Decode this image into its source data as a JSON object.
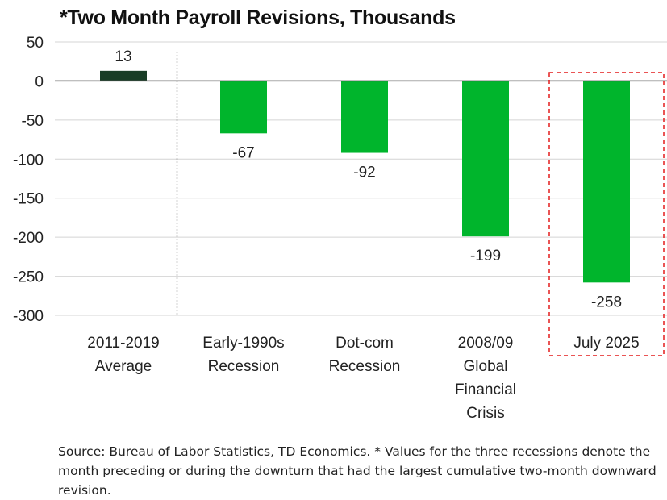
{
  "title": "*Two Month Payroll Revisions, Thousands",
  "footnote": "Source: Bureau of Labor Statistics, TD Economics. * Values for the three recessions denote the month preceding or during the downturn that had the largest cumulative two-month downward revision.",
  "chart_data": {
    "type": "bar",
    "title": "*Two Month Payroll Revisions, Thousands",
    "xlabel": "",
    "ylabel": "",
    "categories": [
      [
        "2011-2019",
        "Average"
      ],
      [
        "Early-1990s",
        "Recession"
      ],
      [
        "Dot-com",
        "Recession"
      ],
      [
        "2008/09",
        "Global",
        "Financial",
        "Crisis"
      ],
      [
        "July 2025"
      ]
    ],
    "values": [
      13,
      -67,
      -92,
      -199,
      -258
    ],
    "data_labels": [
      "13",
      "-67",
      "-92",
      "-199",
      "-258"
    ],
    "ylim": [
      -300,
      50
    ],
    "yticks": [
      50,
      0,
      -50,
      -100,
      -150,
      -200,
      -250,
      -300
    ],
    "grid": true,
    "bar_colors": [
      "#183d26",
      "#00b52c",
      "#00b52c",
      "#00b52c",
      "#00b52c"
    ],
    "highlight_category_index": 4,
    "highlight_color": "#e41c1c",
    "separator_after_index": 0,
    "grid_color": "#d4d4d4",
    "zero_line_color": "#555555"
  }
}
